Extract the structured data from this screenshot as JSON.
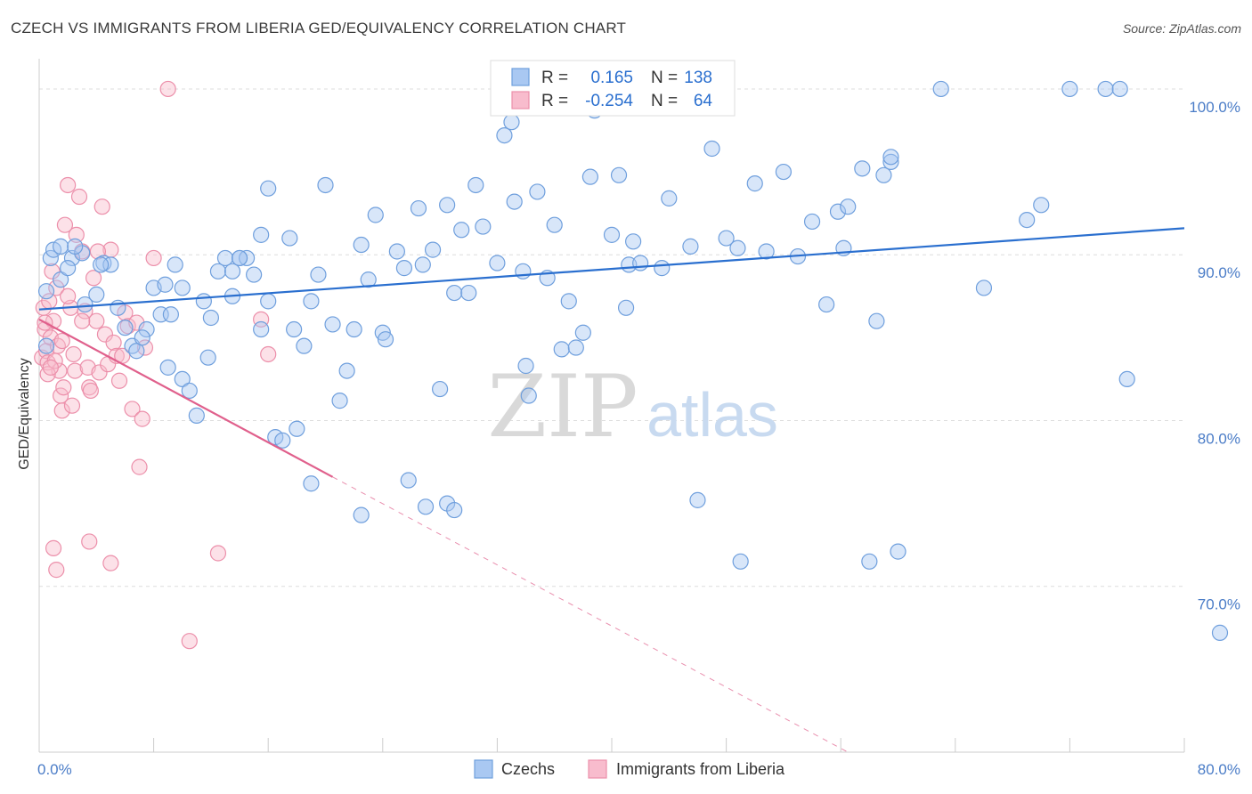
{
  "title": "CZECH VS IMMIGRANTS FROM LIBERIA GED/EQUIVALENCY CORRELATION CHART",
  "source": "Source: ZipAtlas.com",
  "colors": {
    "czech_fill": "#a9c8f2",
    "czech_stroke": "#6f9fdd",
    "czech_line": "#2a6fcf",
    "liberia_fill": "#f8bccd",
    "liberia_stroke": "#ec8faa",
    "liberia_line": "#e0608c",
    "tick_text": "#4a7cc7",
    "grid": "#dddddd"
  },
  "watermark": {
    "zip": "ZIP",
    "atlas": "atlas"
  },
  "chart_data": {
    "type": "scatter",
    "title": "CZECH VS IMMIGRANTS FROM LIBERIA GED/EQUIVALENCY CORRELATION CHART",
    "xlabel": "",
    "ylabel": "GED/Equivalency",
    "xlim": [
      0,
      80
    ],
    "ylim": [
      60,
      101.5
    ],
    "x_tick_labels": [
      "0.0%",
      "80.0%"
    ],
    "y_ticks": [
      70,
      80,
      90,
      100
    ],
    "y_tick_labels": [
      "70.0%",
      "80.0%",
      "90.0%",
      "100.0%"
    ],
    "legend_stats": [
      {
        "r_label": "R =",
        "r_value": "0.165",
        "n_label": "N =",
        "n_value": "138"
      },
      {
        "r_label": "R =",
        "r_value": "-0.254",
        "n_label": "N =",
        "n_value": "64"
      }
    ],
    "series": [
      {
        "name": "Czechs",
        "trend": {
          "x0": 0,
          "y0": 86.7,
          "x1": 80,
          "y1": 91.6
        },
        "points": [
          [
            0.5,
            87.8
          ],
          [
            0.5,
            84.5
          ],
          [
            0.8,
            89.8
          ],
          [
            1.0,
            90.3
          ],
          [
            1.5,
            90.5
          ],
          [
            1.5,
            88.5
          ],
          [
            2.3,
            89.8
          ],
          [
            2.0,
            89.2
          ],
          [
            3.0,
            90.1
          ],
          [
            2.5,
            90.5
          ],
          [
            4.5,
            89.5
          ],
          [
            5.0,
            89.4
          ],
          [
            4.3,
            89.4
          ],
          [
            3.2,
            87.0
          ],
          [
            4.0,
            87.6
          ],
          [
            6.0,
            85.6
          ],
          [
            6.5,
            84.5
          ],
          [
            6.8,
            84.2
          ],
          [
            7.5,
            85.5
          ],
          [
            8.5,
            86.4
          ],
          [
            8.0,
            88.0
          ],
          [
            8.8,
            88.2
          ],
          [
            9.5,
            89.4
          ],
          [
            10.0,
            88.0
          ],
          [
            9.0,
            83.2
          ],
          [
            10.0,
            82.5
          ],
          [
            10.5,
            81.8
          ],
          [
            11.0,
            80.3
          ],
          [
            11.5,
            87.2
          ],
          [
            11.8,
            83.8
          ],
          [
            12.5,
            89.0
          ],
          [
            13.0,
            89.8
          ],
          [
            13.5,
            89.0
          ],
          [
            14.0,
            89.8
          ],
          [
            14.5,
            89.8
          ],
          [
            15.0,
            88.8
          ],
          [
            14.0,
            89.8
          ],
          [
            15.5,
            91.2
          ],
          [
            15.5,
            85.5
          ],
          [
            16.0,
            94.0
          ],
          [
            16.5,
            79.0
          ],
          [
            17.0,
            78.8
          ],
          [
            17.5,
            91.0
          ],
          [
            17.8,
            85.5
          ],
          [
            18.5,
            84.5
          ],
          [
            19.0,
            87.2
          ],
          [
            19.5,
            88.8
          ],
          [
            20.0,
            94.2
          ],
          [
            20.5,
            85.8
          ],
          [
            21.0,
            81.2
          ],
          [
            21.5,
            83.0
          ],
          [
            22.0,
            85.5
          ],
          [
            22.5,
            90.6
          ],
          [
            23.0,
            88.5
          ],
          [
            23.5,
            92.4
          ],
          [
            24.0,
            85.3
          ],
          [
            24.2,
            84.9
          ],
          [
            25.0,
            90.2
          ],
          [
            25.5,
            89.2
          ],
          [
            26.5,
            92.8
          ],
          [
            26.8,
            89.4
          ],
          [
            27.5,
            90.3
          ],
          [
            28.0,
            81.9
          ],
          [
            28.5,
            93.0
          ],
          [
            29.0,
            87.7
          ],
          [
            29.5,
            91.5
          ],
          [
            30.0,
            87.7
          ],
          [
            30.5,
            94.2
          ],
          [
            31.0,
            91.7
          ],
          [
            32.0,
            89.5
          ],
          [
            32.5,
            97.2
          ],
          [
            33.0,
            98.0
          ],
          [
            33.2,
            93.2
          ],
          [
            33.8,
            89.0
          ],
          [
            34.0,
            83.3
          ],
          [
            34.2,
            81.5
          ],
          [
            34.8,
            93.8
          ],
          [
            35.5,
            88.6
          ],
          [
            36.0,
            91.8
          ],
          [
            36.5,
            84.3
          ],
          [
            37.0,
            87.2
          ],
          [
            37.5,
            84.4
          ],
          [
            38.0,
            85.3
          ],
          [
            38.5,
            94.7
          ],
          [
            38.8,
            98.7
          ],
          [
            39.5,
            100.0
          ],
          [
            40.0,
            91.2
          ],
          [
            40.5,
            94.8
          ],
          [
            41.0,
            86.8
          ],
          [
            41.2,
            89.4
          ],
          [
            41.5,
            90.8
          ],
          [
            42.0,
            89.5
          ],
          [
            43.5,
            89.2
          ],
          [
            44.0,
            93.4
          ],
          [
            45.5,
            90.5
          ],
          [
            46.0,
            75.2
          ],
          [
            47.0,
            96.4
          ],
          [
            48.0,
            91.0
          ],
          [
            48.8,
            90.4
          ],
          [
            49.0,
            71.5
          ],
          [
            50.0,
            94.3
          ],
          [
            50.8,
            90.2
          ],
          [
            52.0,
            95.0
          ],
          [
            53.0,
            89.9
          ],
          [
            54.0,
            92.0
          ],
          [
            55.0,
            87.0
          ],
          [
            55.8,
            92.6
          ],
          [
            56.2,
            90.4
          ],
          [
            56.5,
            92.9
          ],
          [
            57.5,
            95.2
          ],
          [
            58.0,
            71.5
          ],
          [
            58.5,
            86.0
          ],
          [
            59.0,
            94.8
          ],
          [
            59.5,
            95.6
          ],
          [
            59.5,
            95.9
          ],
          [
            60.0,
            72.1
          ],
          [
            63.0,
            100.0
          ],
          [
            66.0,
            88.0
          ],
          [
            69.0,
            92.1
          ],
          [
            70.0,
            93.0
          ],
          [
            72.0,
            100.0
          ],
          [
            74.5,
            100.0
          ],
          [
            75.5,
            100.0
          ],
          [
            76.0,
            82.5
          ],
          [
            84.0,
            67.2
          ],
          [
            19.0,
            76.2
          ],
          [
            25.8,
            76.4
          ],
          [
            27.0,
            74.8
          ],
          [
            28.5,
            75.0
          ],
          [
            29.0,
            74.6
          ],
          [
            12.0,
            86.2
          ],
          [
            13.5,
            87.5
          ],
          [
            16.0,
            87.2
          ],
          [
            18.0,
            79.5
          ],
          [
            22.5,
            74.3
          ],
          [
            7.2,
            85.0
          ],
          [
            5.5,
            86.8
          ],
          [
            9.2,
            86.4
          ]
        ]
      },
      {
        "name": "Immigrants from Liberia",
        "trend": {
          "x0": 0,
          "y0": 86.1,
          "x1": 20.5,
          "y1": 76.6
        },
        "trend_ext": {
          "x0": 20.5,
          "y0": 76.6,
          "x1": 56.5,
          "y1": 60.0
        },
        "points": [
          [
            0.2,
            83.8
          ],
          [
            0.3,
            86.8
          ],
          [
            0.4,
            85.5
          ],
          [
            0.5,
            84.2
          ],
          [
            0.6,
            83.5
          ],
          [
            0.7,
            87.2
          ],
          [
            0.8,
            85.0
          ],
          [
            1.0,
            86.0
          ],
          [
            1.2,
            88.0
          ],
          [
            1.3,
            84.5
          ],
          [
            1.4,
            83.0
          ],
          [
            1.5,
            81.5
          ],
          [
            1.6,
            80.6
          ],
          [
            1.7,
            82.0
          ],
          [
            2.0,
            94.2
          ],
          [
            2.2,
            86.8
          ],
          [
            2.4,
            84.0
          ],
          [
            2.5,
            83.0
          ],
          [
            2.6,
            91.2
          ],
          [
            2.8,
            93.5
          ],
          [
            3.0,
            90.2
          ],
          [
            3.2,
            86.6
          ],
          [
            3.4,
            83.2
          ],
          [
            3.5,
            82.0
          ],
          [
            3.6,
            81.8
          ],
          [
            4.0,
            86.0
          ],
          [
            4.2,
            82.9
          ],
          [
            4.4,
            92.9
          ],
          [
            4.6,
            85.2
          ],
          [
            4.8,
            83.4
          ],
          [
            5.0,
            90.3
          ],
          [
            5.2,
            84.7
          ],
          [
            5.4,
            83.9
          ],
          [
            5.6,
            82.4
          ],
          [
            6.0,
            86.5
          ],
          [
            6.2,
            85.7
          ],
          [
            6.5,
            80.7
          ],
          [
            7.0,
            77.2
          ],
          [
            7.2,
            80.1
          ],
          [
            7.4,
            84.4
          ],
          [
            8.0,
            89.8
          ],
          [
            9.0,
            100.0
          ],
          [
            10.5,
            66.7
          ],
          [
            12.5,
            72.0
          ],
          [
            15.5,
            86.1
          ],
          [
            16.0,
            84.0
          ],
          [
            1.0,
            72.3
          ],
          [
            1.2,
            71.0
          ],
          [
            3.5,
            72.7
          ],
          [
            5.0,
            71.4
          ],
          [
            0.9,
            89.0
          ],
          [
            1.8,
            91.8
          ],
          [
            2.0,
            87.5
          ],
          [
            0.6,
            82.8
          ],
          [
            3.8,
            88.6
          ],
          [
            1.1,
            83.6
          ],
          [
            0.4,
            85.9
          ],
          [
            2.3,
            80.9
          ],
          [
            4.1,
            90.2
          ],
          [
            5.8,
            83.9
          ],
          [
            6.8,
            85.9
          ],
          [
            3.0,
            86.0
          ],
          [
            1.6,
            84.8
          ],
          [
            0.8,
            83.2
          ]
        ]
      }
    ]
  },
  "legend": {
    "items": [
      "Czechs",
      "Immigrants from Liberia"
    ]
  }
}
